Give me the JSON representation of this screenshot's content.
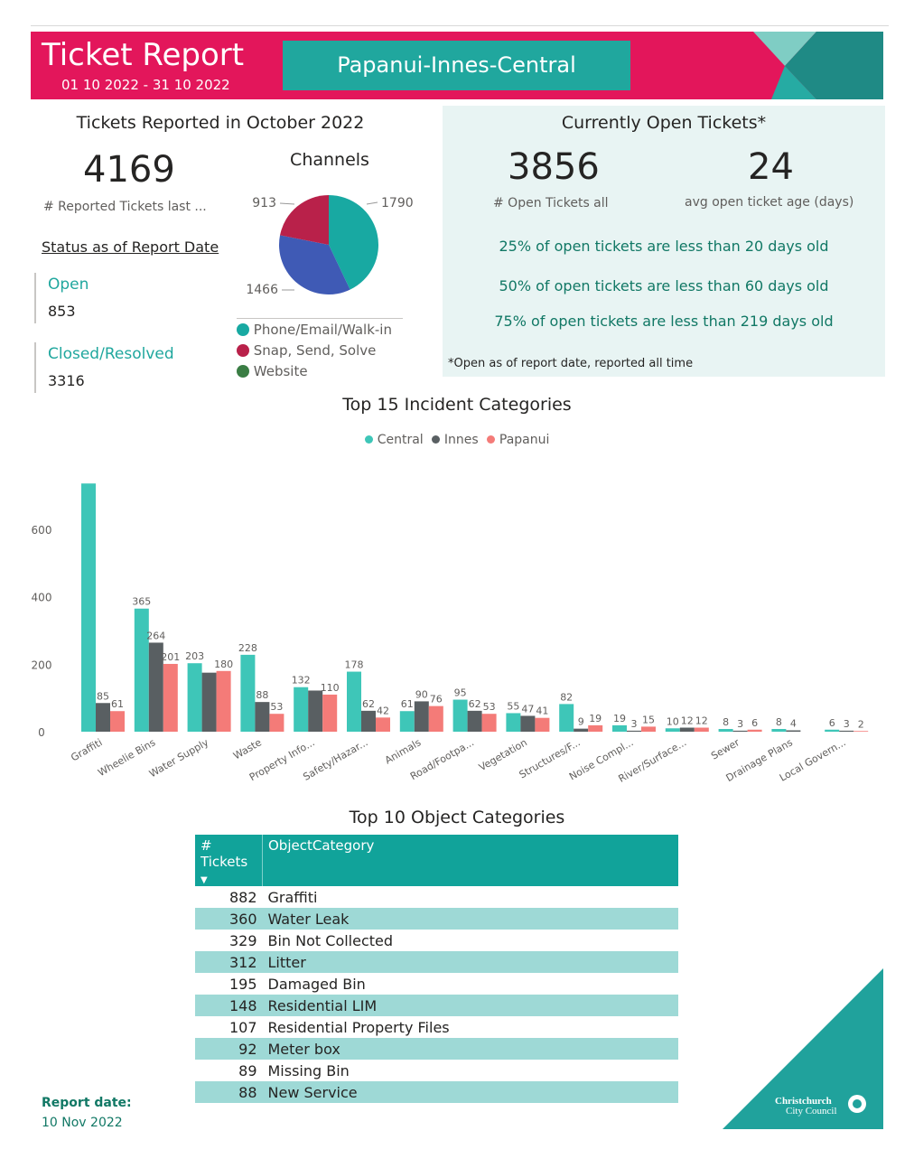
{
  "header": {
    "title": "Ticket Report",
    "date_range": "01 10 2022 - 31 10 2022",
    "area": "Papanui-Innes-Central"
  },
  "reported": {
    "heading": "Tickets Reported in October 2022",
    "count": "4169",
    "count_label": "# Reported Tickets last ..."
  },
  "status": {
    "heading": "Status as of Report Date",
    "open_label": "Open",
    "open_value": "853",
    "closed_label": "Closed/Resolved",
    "closed_value": "3316"
  },
  "channels": {
    "heading": "Channels",
    "colors": [
      "#18a9a2",
      "#3f5ab5",
      "#b9214a",
      "#3a7d44"
    ],
    "legend": [
      "Phone/Email/Walk-in",
      "Snap, Send, Solve",
      "Website"
    ]
  },
  "open_tickets": {
    "heading": "Currently Open Tickets*",
    "count": "3856",
    "count_label": "# Open Tickets all",
    "age": "24",
    "age_label": "avg open ticket age (days)",
    "p25": "25% of open tickets are less than 20 days old",
    "p50": "50% of open tickets are less than 60 days old",
    "p75": "75% of open tickets are less than 219 days old",
    "footnote": "*Open as of report date, reported all time"
  },
  "chart_data": [
    {
      "type": "pie",
      "title": "Channels",
      "labels": [
        "Phone/Email/Walk-in",
        "",
        "Snap, Send, Solve"
      ],
      "values": [
        1790,
        1466,
        913
      ],
      "colors": [
        "#18a9a2",
        "#3f5ab5",
        "#b9214a"
      ]
    },
    {
      "type": "bar",
      "title": "Top 15 Incident Categories",
      "categories": [
        "Graffiti",
        "Wheelie Bins",
        "Water Supply",
        "Waste",
        "Property Info...",
        "Safety/Hazar...",
        "Animals",
        "Road/Footpa...",
        "Vegetation",
        "Structures/F...",
        "Noise Compl...",
        "River/Surface...",
        "Sewer",
        "Drainage Plans",
        "Local Govern..."
      ],
      "series": [
        {
          "name": "Central",
          "color": "#3ec6b8",
          "values": [
            736,
            365,
            203,
            228,
            132,
            178,
            61,
            95,
            55,
            82,
            19,
            10,
            8,
            8,
            6
          ],
          "labels": [
            "",
            "365",
            "203",
            "228",
            "132",
            "178",
            "61",
            "95",
            "55",
            "82",
            "19",
            "10",
            "8",
            "8",
            "6"
          ]
        },
        {
          "name": "Innes",
          "color": "#595f62",
          "values": [
            85,
            264,
            175,
            88,
            122,
            62,
            90,
            62,
            47,
            9,
            3,
            12,
            3,
            4,
            3
          ],
          "labels": [
            "85",
            "264",
            "",
            "88",
            "",
            "62",
            "90",
            "62",
            "47",
            "9",
            "3",
            "12",
            "3",
            "4",
            "3"
          ]
        },
        {
          "name": "Papanui",
          "color": "#f47b78",
          "values": [
            61,
            201,
            180,
            53,
            110,
            42,
            76,
            53,
            41,
            19,
            15,
            12,
            6,
            0,
            2
          ],
          "labels": [
            "61",
            "201",
            "180",
            "53",
            "110",
            "42",
            "76",
            "53",
            "41",
            "19",
            "15",
            "12",
            "6",
            "",
            "2"
          ]
        }
      ],
      "yticks": [
        0,
        200,
        400,
        600
      ],
      "ylim": [
        0,
        750
      ],
      "legend": "top-center",
      "grid": false
    }
  ],
  "table": {
    "title": "Top 10 Object Categories",
    "col_count": "# Tickets",
    "col_category": "ObjectCategory",
    "rows": [
      {
        "count": "882",
        "category": "Graffiti"
      },
      {
        "count": "360",
        "category": "Water Leak"
      },
      {
        "count": "329",
        "category": "Bin Not Collected"
      },
      {
        "count": "312",
        "category": "Litter"
      },
      {
        "count": "195",
        "category": "Damaged Bin"
      },
      {
        "count": "148",
        "category": "Residential LIM"
      },
      {
        "count": "107",
        "category": "Residential Property Files"
      },
      {
        "count": "92",
        "category": "Meter box"
      },
      {
        "count": "89",
        "category": "Missing Bin"
      },
      {
        "count": "88",
        "category": "New Service"
      }
    ]
  },
  "footer": {
    "report_date_label": "Report date:",
    "report_date": "10 Nov 2022",
    "logo_line1": "Christchurch",
    "logo_line2": "City Council"
  }
}
